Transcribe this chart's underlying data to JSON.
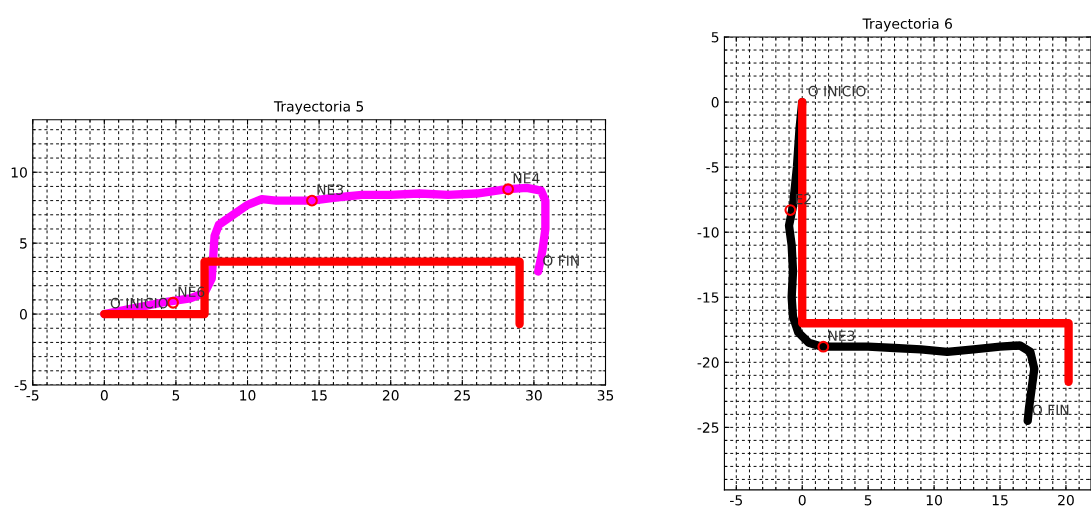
{
  "chart_data": [
    {
      "type": "line",
      "title": "Trayectoria 5",
      "xlim": [
        -5,
        35
      ],
      "ylim": [
        -5,
        13.7
      ],
      "xticks": [
        -5,
        0,
        5,
        10,
        15,
        20,
        25,
        30,
        35
      ],
      "yticks": [
        -5,
        0,
        5,
        10
      ],
      "grid": true,
      "legend": false,
      "series": [
        {
          "color": "#ff00ff",
          "x": [
            0,
            2,
            4,
            6,
            7,
            7.5,
            7.6,
            7.7,
            8,
            9,
            10,
            11,
            12,
            14.5,
            16,
            18,
            20,
            22,
            24,
            26,
            28,
            29.5,
            30.5,
            30.8,
            30.8,
            30.6,
            30.3
          ],
          "values": [
            0,
            0.4,
            0.8,
            1.1,
            1.5,
            2.5,
            4,
            5.5,
            6.3,
            7,
            7.7,
            8.1,
            8,
            8,
            8.2,
            8.4,
            8.4,
            8.5,
            8.4,
            8.5,
            8.8,
            8.9,
            8.7,
            8,
            6,
            4.5,
            3
          ]
        },
        {
          "color": "#ff0000",
          "x": [
            0,
            7,
            7,
            29,
            29
          ],
          "values": [
            0,
            0,
            3.7,
            3.7,
            -0.7
          ]
        },
        {
          "type": "scatter",
          "color": "#ff0000",
          "marker": "circle",
          "x": [
            4.8,
            14.5,
            28.2
          ],
          "values": [
            0.8,
            8,
            8.8
          ]
        }
      ],
      "annotations": [
        {
          "text": "O INICIO",
          "x": 0.1,
          "y": 0
        },
        {
          "text": "NE6",
          "x": 4.8,
          "y": 0.8
        },
        {
          "text": "NE3",
          "x": 14.5,
          "y": 8
        },
        {
          "text": "NE4",
          "x": 28.2,
          "y": 8.8
        },
        {
          "text": "O FIN",
          "x": 30.3,
          "y": 3
        }
      ]
    },
    {
      "type": "line",
      "title": "Trayectoria 6",
      "xlim": [
        -5.9,
        21.9
      ],
      "ylim": [
        -29.8,
        5
      ],
      "xticks": [
        -5,
        0,
        5,
        10,
        15,
        20
      ],
      "yticks": [
        -25,
        -20,
        -15,
        -10,
        -5,
        0,
        5
      ],
      "grid": true,
      "legend": false,
      "series": [
        {
          "color": "#000000",
          "x": [
            0,
            -0.2,
            -0.4,
            -0.7,
            -1,
            -0.8,
            -0.7,
            -0.8,
            -0.7,
            -0.3,
            0.5,
            1.5,
            3,
            5,
            7,
            9,
            11,
            13,
            15,
            16.5,
            17.3,
            17.6,
            17.4,
            17.2,
            17.1
          ],
          "values": [
            0,
            -2,
            -5,
            -8,
            -9.5,
            -11,
            -13,
            -15,
            -16.5,
            -17.7,
            -18.5,
            -18.8,
            -18.8,
            -18.8,
            -18.9,
            -19,
            -19.2,
            -19,
            -18.8,
            -18.7,
            -19.2,
            -20.5,
            -22,
            -23.5,
            -24.5
          ]
        },
        {
          "color": "#ff0000",
          "x": [
            0,
            0,
            20.2,
            20.2
          ],
          "values": [
            0,
            -17,
            -17,
            -21.5
          ]
        },
        {
          "type": "scatter",
          "color": "#ff0000",
          "marker": "circle",
          "x": [
            -0.9,
            1.6
          ],
          "values": [
            -8.3,
            -18.8
          ]
        }
      ],
      "annotations": [
        {
          "text": "O INICIO",
          "x": 0.1,
          "y": 0
        },
        {
          "text": "E2",
          "x": -0.9,
          "y": -8.3
        },
        {
          "text": "NE3",
          "x": 1.6,
          "y": -18.8
        },
        {
          "text": "O FIN",
          "x": 17.1,
          "y": -24.5
        }
      ]
    }
  ]
}
